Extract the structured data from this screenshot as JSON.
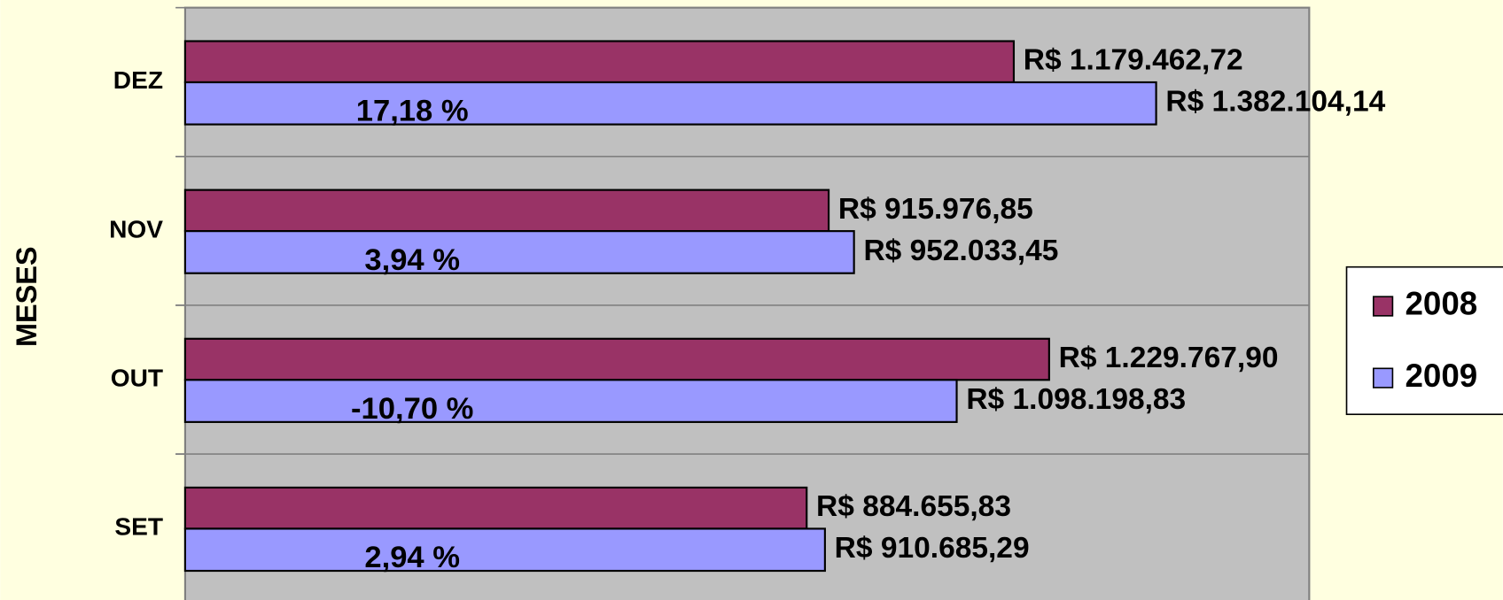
{
  "chart_data": {
    "type": "bar",
    "orientation": "horizontal",
    "y_label": "MESES",
    "categories": [
      "SET",
      "OUT",
      "NOV",
      "DEZ"
    ],
    "series": [
      {
        "name": "2008",
        "color": "#993366",
        "values": [
          884655.83,
          1229767.9,
          915976.85,
          1179462.72
        ],
        "value_labels": [
          "R$ 884.655,83",
          "R$ 1.229.767,90",
          "R$ 915.976,85",
          "R$ 1.179.462,72"
        ]
      },
      {
        "name": "2009",
        "color": "#9999ff",
        "values": [
          910685.29,
          1098198.83,
          952033.45,
          1382104.14
        ],
        "value_labels": [
          "R$ 910.685,29",
          "R$ 1.098.198,83",
          "R$ 952.033,45",
          "R$ 1.382.104,14"
        ]
      }
    ],
    "annotations": [
      "2,94 %",
      "-10,70 %",
      "3,94 %",
      "17,18 %"
    ],
    "xlim": [
      0,
      1600000
    ],
    "plot_color": "#c0c0c0",
    "background": "#ffffe0",
    "legend": "right"
  }
}
